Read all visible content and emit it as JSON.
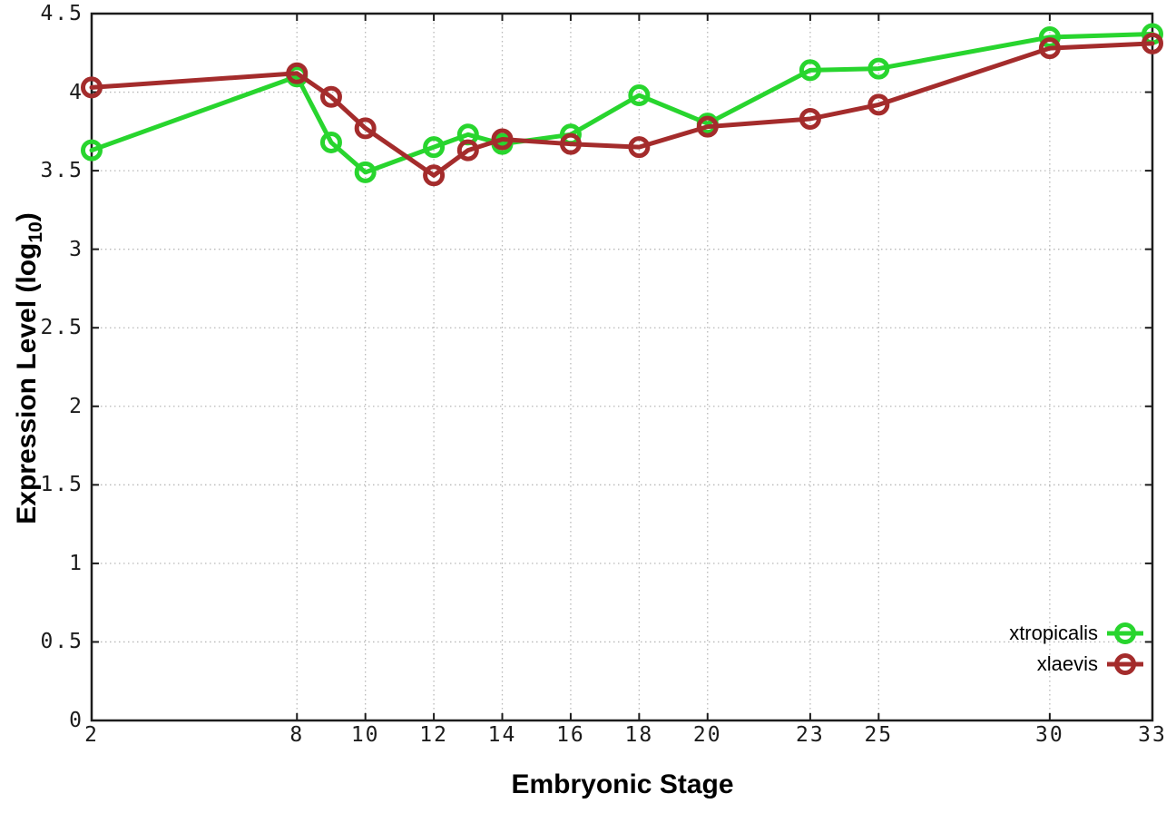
{
  "chart_data": {
    "type": "line",
    "title": "",
    "xlabel": "Embryonic Stage",
    "ylabel": "Expression Level (log10)",
    "ylabel_parts": {
      "base": "Expression Level (log",
      "sub": "10",
      "close": ")"
    },
    "xlim": [
      2,
      33
    ],
    "ylim": [
      0,
      4.5
    ],
    "grid": true,
    "legend_position": "bottom-right",
    "x_tick_values": [
      2,
      8,
      10,
      12,
      14,
      16,
      18,
      20,
      23,
      25,
      30,
      33
    ],
    "x_tick_labels": [
      "2",
      "8",
      "10",
      "12",
      "14",
      "16",
      "18",
      "20",
      "23",
      "25",
      "30",
      "33"
    ],
    "y_tick_values": [
      0,
      0.5,
      1,
      1.5,
      2,
      2.5,
      3,
      3.5,
      4,
      4.5
    ],
    "y_tick_labels": [
      "0",
      "0.5",
      "1",
      "1.5",
      "2",
      "2.5",
      "3",
      "3.5",
      "4",
      "4.5"
    ],
    "x": [
      2,
      8,
      9,
      10,
      12,
      13,
      14,
      16,
      18,
      20,
      23,
      25,
      30,
      33
    ],
    "series": [
      {
        "name": "xtropicalis",
        "color": "#28d52e",
        "marker": "open-circle",
        "values": [
          3.63,
          4.1,
          3.68,
          3.49,
          3.65,
          3.73,
          3.67,
          3.73,
          3.98,
          3.8,
          4.14,
          4.15,
          4.35,
          4.37
        ]
      },
      {
        "name": "xlaevis",
        "color": "#a42c2c",
        "marker": "open-circle",
        "values": [
          4.03,
          4.12,
          3.97,
          3.77,
          3.47,
          3.63,
          3.7,
          3.67,
          3.65,
          3.78,
          3.83,
          3.92,
          4.28,
          4.31
        ]
      }
    ],
    "style": {
      "border_color": "#1c1c1c",
      "grid_color": "#b8b8b8",
      "line_width": 5,
      "marker_radius": 9.5,
      "marker_stroke": 5
    }
  }
}
